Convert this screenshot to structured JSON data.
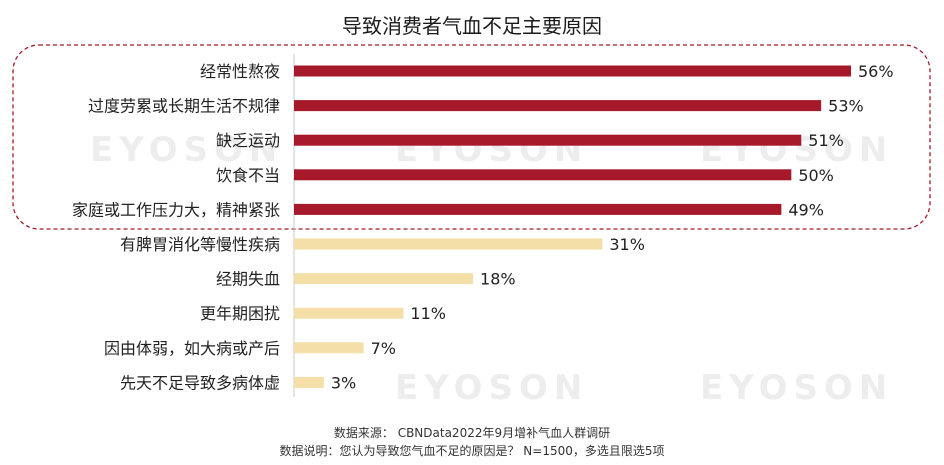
{
  "chart_data": {
    "type": "bar",
    "orientation": "horizontal",
    "title": "导致消费者气血不足主要原因",
    "categories": [
      "经常性熬夜",
      "过度劳累或长期生活不规律",
      "缺乏运动",
      "饮食不当",
      "家庭或工作压力大，精神紧张",
      "有脾胃消化等慢性疾病",
      "经期失血",
      "更年期困扰",
      "因由体弱，如大病或产后",
      "先天不足导致多病体虚"
    ],
    "values": [
      56,
      53,
      51,
      50,
      49,
      31,
      18,
      11,
      7,
      3
    ],
    "value_labels": [
      "56%",
      "53%",
      "51%",
      "50%",
      "49%",
      "31%",
      "18%",
      "11%",
      "7%",
      "3%"
    ],
    "highlight_count": 5,
    "xlim": [
      0,
      60
    ],
    "grid": false,
    "colors": {
      "highlight": "#A5192A",
      "normal": "#F5DFA8",
      "outline": "#A5192A"
    }
  },
  "watermark_text": "EYOSON",
  "footer": {
    "source": "数据来源： CBNData2022年9月增补气血人群调研",
    "note": "数据说明：您认为导致您气血不足的原因是？ N=1500，多选且限选5项"
  }
}
